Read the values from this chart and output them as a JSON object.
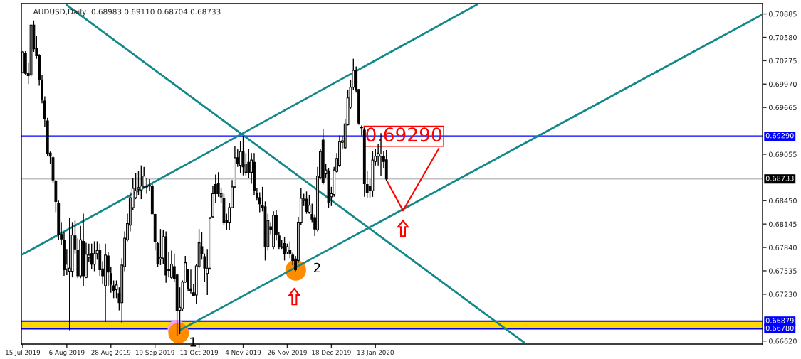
{
  "chart_data": {
    "type": "candlestick",
    "title": "AUDUSD,Daily  0.68983 0.69110 0.68704 0.68733",
    "categories": [
      "15 Jul 2019",
      null,
      null,
      null,
      null,
      null,
      null,
      null,
      null,
      null,
      null,
      null,
      null,
      null,
      null,
      null,
      "6 Aug 2019",
      null,
      null,
      null,
      null,
      null,
      null,
      null,
      null,
      null,
      null,
      null,
      null,
      null,
      null,
      null,
      "28 Aug 2019",
      null,
      null,
      null,
      null,
      null,
      null,
      null,
      null,
      null,
      null,
      null,
      null,
      null,
      null,
      null,
      "19 Sep 2019",
      null,
      null,
      null,
      null,
      null,
      null,
      null,
      null,
      null,
      null,
      null,
      null,
      null,
      null,
      null,
      "11 Oct 2019",
      null,
      null,
      null,
      null,
      null,
      null,
      null,
      null,
      null,
      null,
      null,
      null,
      null,
      null,
      null,
      "4 Nov 2019",
      null,
      null,
      null,
      null,
      null,
      null,
      null,
      null,
      null,
      null,
      null,
      null,
      null,
      null,
      null,
      "26 Nov 2019",
      null,
      null,
      null,
      null,
      null,
      null,
      null,
      null,
      null,
      null,
      null,
      null,
      null,
      null,
      null,
      "18 Dec 2019",
      null,
      null,
      null,
      null,
      null,
      null,
      null,
      null,
      null,
      null,
      null,
      null,
      null,
      null,
      null,
      "13 Jan 2020",
      null,
      null,
      null,
      null,
      null,
      null,
      null,
      null,
      null,
      null,
      null,
      null,
      null,
      null,
      null,
      null,
      null,
      null,
      null,
      null,
      null,
      null,
      null,
      null,
      null,
      null,
      null,
      null,
      null,
      null,
      null,
      null,
      null,
      null,
      null,
      null,
      null,
      null,
      null,
      null,
      null,
      null,
      null,
      null,
      null,
      null,
      null,
      null,
      null,
      null,
      null,
      null,
      null,
      null,
      null,
      null,
      null,
      null,
      null,
      null,
      null,
      null,
      null,
      null,
      null,
      null,
      null,
      null,
      null,
      null,
      null,
      null,
      null,
      null,
      null,
      null,
      null,
      null,
      null,
      null,
      null,
      null,
      null,
      null,
      null,
      null,
      null,
      null,
      null,
      null,
      null,
      null,
      null,
      null,
      null,
      null,
      null,
      null,
      null,
      null,
      null,
      null,
      null,
      null,
      null,
      null,
      null,
      null,
      null,
      null,
      null,
      null,
      null,
      null,
      null,
      null,
      null,
      null,
      null,
      null,
      null,
      null,
      null,
      null,
      null,
      null,
      null,
      null,
      null,
      null,
      null,
      null,
      null,
      null,
      null,
      null,
      null,
      null,
      null,
      null
    ],
    "ohlc": [
      [
        0.7012,
        0.704,
        0.7011,
        0.7039
      ],
      [
        0.7037,
        0.704,
        0.7009,
        0.7011
      ],
      [
        0.7011,
        0.7025,
        0.6997,
        0.7008
      ],
      [
        0.7009,
        0.7074,
        0.7007,
        0.7074
      ],
      [
        0.7074,
        0.708,
        0.7039,
        0.7043
      ],
      [
        0.7043,
        0.706,
        0.703,
        0.7034
      ],
      [
        0.7034,
        0.7036,
        0.6995,
        0.7003
      ],
      [
        0.7002,
        0.7009,
        0.6972,
        0.6977
      ],
      [
        0.6975,
        0.6981,
        0.6941,
        0.6952
      ],
      [
        0.6949,
        0.6953,
        0.6903,
        0.6907
      ],
      [
        0.6907,
        0.6909,
        0.6893,
        0.6903
      ],
      [
        0.6901,
        0.6903,
        0.6868,
        0.6872
      ],
      [
        0.687,
        0.6872,
        0.683,
        0.6844
      ],
      [
        0.6842,
        0.6845,
        0.6794,
        0.6801
      ],
      [
        0.6801,
        0.6817,
        0.6787,
        0.6795
      ],
      [
        0.6793,
        0.6804,
        0.6747,
        0.6755
      ],
      [
        0.6756,
        0.6782,
        0.6748,
        0.6762
      ],
      [
        0.6753,
        0.6822,
        0.6676,
        0.6757
      ],
      [
        0.6753,
        0.6817,
        0.6745,
        0.68
      ],
      [
        0.6799,
        0.6819,
        0.6776,
        0.6782
      ],
      [
        0.678,
        0.6796,
        0.6744,
        0.6747
      ],
      [
        0.6747,
        0.6812,
        0.6744,
        0.6794
      ],
      [
        0.6792,
        0.6828,
        0.6733,
        0.6747
      ],
      [
        0.6745,
        0.679,
        0.6744,
        0.6775
      ],
      [
        0.6771,
        0.6789,
        0.6765,
        0.6774
      ],
      [
        0.6776,
        0.6789,
        0.6756,
        0.6762
      ],
      [
        0.6762,
        0.6792,
        0.6753,
        0.6776
      ],
      [
        0.6776,
        0.6792,
        0.6768,
        0.678
      ],
      [
        0.678,
        0.6789,
        0.6747,
        0.6755
      ],
      [
        0.6756,
        0.6766,
        0.6736,
        0.6747
      ],
      [
        0.6734,
        0.6789,
        0.6687,
        0.6774
      ],
      [
        0.6773,
        0.6778,
        0.6733,
        0.6752
      ],
      [
        0.675,
        0.6759,
        0.6725,
        0.6736
      ],
      [
        0.6734,
        0.6741,
        0.6718,
        0.6727
      ],
      [
        0.6729,
        0.6741,
        0.6718,
        0.6735
      ],
      [
        0.6724,
        0.6732,
        0.6702,
        0.6712
      ],
      [
        0.6712,
        0.677,
        0.6685,
        0.6761
      ],
      [
        0.6759,
        0.6805,
        0.6753,
        0.6796
      ],
      [
        0.6794,
        0.6828,
        0.6792,
        0.6815
      ],
      [
        0.6813,
        0.6856,
        0.6805,
        0.6849
      ],
      [
        0.6836,
        0.6875,
        0.6833,
        0.6861
      ],
      [
        0.6849,
        0.6881,
        0.6847,
        0.6858
      ],
      [
        0.686,
        0.6884,
        0.6852,
        0.6862
      ],
      [
        0.6859,
        0.6891,
        0.6847,
        0.6864
      ],
      [
        0.6863,
        0.6889,
        0.6861,
        0.6877
      ],
      [
        0.6863,
        0.6875,
        0.6854,
        0.6864
      ],
      [
        0.6864,
        0.6873,
        0.6858,
        0.6865
      ],
      [
        0.6864,
        0.6867,
        0.6828,
        0.6828
      ],
      [
        0.6827,
        0.6828,
        0.678,
        0.6792
      ],
      [
        0.6789,
        0.6791,
        0.6759,
        0.6763
      ],
      [
        0.6769,
        0.6808,
        0.6761,
        0.6771
      ],
      [
        0.677,
        0.6807,
        0.6762,
        0.6798
      ],
      [
        0.6798,
        0.6805,
        0.6738,
        0.6748
      ],
      [
        0.6754,
        0.6778,
        0.6745,
        0.6755
      ],
      [
        0.6745,
        0.678,
        0.6743,
        0.6762
      ],
      [
        0.6759,
        0.6776,
        0.6739,
        0.6743
      ],
      [
        0.6748,
        0.675,
        0.6669,
        0.6702
      ],
      [
        0.6702,
        0.6732,
        0.6671,
        0.6706
      ],
      [
        0.6704,
        0.6741,
        0.6701,
        0.6739
      ],
      [
        0.6739,
        0.6773,
        0.6738,
        0.6764
      ],
      [
        0.6755,
        0.6756,
        0.6727,
        0.673
      ],
      [
        0.673,
        0.6755,
        0.6724,
        0.6727
      ],
      [
        0.6725,
        0.6736,
        0.672,
        0.6721
      ],
      [
        0.6722,
        0.6762,
        0.671,
        0.676
      ],
      [
        0.6759,
        0.6808,
        0.6757,
        0.679
      ],
      [
        0.6785,
        0.6804,
        0.6768,
        0.6776
      ],
      [
        0.6772,
        0.6776,
        0.6739,
        0.6757
      ],
      [
        0.675,
        0.6782,
        0.6722,
        0.6757
      ],
      [
        0.6757,
        0.6824,
        0.6755,
        0.6822
      ],
      [
        0.6824,
        0.6864,
        0.6822,
        0.6854
      ],
      [
        0.6866,
        0.6879,
        0.6842,
        0.6854
      ],
      [
        0.6867,
        0.6882,
        0.685,
        0.6854
      ],
      [
        0.685,
        0.6861,
        0.6842,
        0.6854
      ],
      [
        0.6848,
        0.6854,
        0.6813,
        0.6817
      ],
      [
        0.6819,
        0.6828,
        0.6807,
        0.6817
      ],
      [
        0.6817,
        0.6842,
        0.6807,
        0.6836
      ],
      [
        0.6836,
        0.6872,
        0.6835,
        0.6863
      ],
      [
        0.6863,
        0.6916,
        0.6861,
        0.6901
      ],
      [
        0.6901,
        0.6912,
        0.6889,
        0.6893
      ],
      [
        0.6891,
        0.6923,
        0.6881,
        0.6909
      ],
      [
        0.6909,
        0.6929,
        0.6878,
        0.6889
      ],
      [
        0.6882,
        0.6907,
        0.6878,
        0.6893
      ],
      [
        0.6895,
        0.6912,
        0.6875,
        0.6882
      ],
      [
        0.6882,
        0.6907,
        0.6867,
        0.6898
      ],
      [
        0.6895,
        0.6907,
        0.6852,
        0.6858
      ],
      [
        0.6854,
        0.6861,
        0.6845,
        0.6849
      ],
      [
        0.6849,
        0.6856,
        0.683,
        0.6841
      ],
      [
        0.6839,
        0.6863,
        0.6831,
        0.6836
      ],
      [
        0.6837,
        0.6844,
        0.6767,
        0.6785
      ],
      [
        0.6785,
        0.6828,
        0.678,
        0.6819
      ],
      [
        0.6811,
        0.6817,
        0.6801,
        0.6807
      ],
      [
        0.6785,
        0.6831,
        0.6782,
        0.6826
      ],
      [
        0.6826,
        0.6833,
        0.6793,
        0.6801
      ],
      [
        0.6799,
        0.6804,
        0.6782,
        0.6785
      ],
      [
        0.6785,
        0.6794,
        0.6782,
        0.6784
      ],
      [
        0.6789,
        0.6798,
        0.6767,
        0.6776
      ],
      [
        0.6778,
        0.6789,
        0.6775,
        0.6785
      ],
      [
        0.678,
        0.6792,
        0.677,
        0.6776
      ],
      [
        0.6774,
        0.6777,
        0.6761,
        0.6767
      ],
      [
        0.6769,
        0.6773,
        0.6753,
        0.6755
      ],
      [
        0.6767,
        0.6824,
        0.6764,
        0.6817
      ],
      [
        0.6817,
        0.6861,
        0.6813,
        0.6848
      ],
      [
        0.6845,
        0.6854,
        0.6838,
        0.6847
      ],
      [
        0.6847,
        0.6857,
        0.6828,
        0.6831
      ],
      [
        0.683,
        0.6852,
        0.6828,
        0.6839
      ],
      [
        0.6827,
        0.6841,
        0.6817,
        0.6821
      ],
      [
        0.6823,
        0.6827,
        0.6799,
        0.6808
      ],
      [
        0.6807,
        0.6889,
        0.6805,
        0.6877
      ],
      [
        0.6875,
        0.6913,
        0.6873,
        0.6909
      ],
      [
        0.6924,
        0.6938,
        0.6866,
        0.6868
      ],
      [
        0.688,
        0.6893,
        0.6875,
        0.6885
      ],
      [
        0.6884,
        0.6887,
        0.6836,
        0.6842
      ],
      [
        0.685,
        0.6863,
        0.6838,
        0.6854
      ],
      [
        0.6853,
        0.6889,
        0.685,
        0.6885
      ],
      [
        0.6883,
        0.6907,
        0.6881,
        0.69
      ],
      [
        0.6891,
        0.693,
        0.6889,
        0.6922
      ],
      [
        0.6921,
        0.6929,
        0.6912,
        0.6923
      ],
      [
        0.6914,
        0.6951,
        0.6912,
        0.6945
      ],
      [
        0.6944,
        0.6989,
        0.6943,
        0.6979
      ],
      [
        0.6967,
        0.7002,
        0.6965,
        0.6993
      ],
      [
        0.6993,
        0.703,
        0.6989,
        0.7015
      ],
      [
        0.7015,
        0.702,
        0.6986,
        0.6989
      ],
      [
        0.699,
        0.699,
        0.6944,
        0.6946
      ],
      [
        0.6941,
        0.6943,
        0.693,
        0.694
      ],
      [
        0.6937,
        0.694,
        0.685,
        0.6867
      ],
      [
        0.6866,
        0.6884,
        0.6849,
        0.6856
      ],
      [
        0.6864,
        0.6873,
        0.6849,
        0.6858
      ],
      [
        0.6858,
        0.691,
        0.685,
        0.6898
      ],
      [
        0.6896,
        0.6912,
        0.6891,
        0.6903
      ],
      [
        0.6903,
        0.6919,
        0.6891,
        0.6907
      ],
      [
        0.6903,
        0.6933,
        0.6877,
        0.6906
      ],
      [
        0.6903,
        0.691,
        0.6887,
        0.6896
      ],
      [
        0.68983,
        0.6911,
        0.68704,
        0.68733
      ],
      null,
      null,
      null,
      null,
      null,
      null,
      null,
      null,
      null,
      null,
      null,
      null,
      null,
      null,
      null,
      null,
      null,
      null,
      null,
      null,
      null,
      null,
      null,
      null,
      null,
      null,
      null,
      null,
      null,
      null,
      null,
      null,
      null,
      null,
      null,
      null,
      null,
      null,
      null,
      null,
      null,
      null,
      null,
      null,
      null,
      null,
      null,
      null,
      null,
      null,
      null,
      null,
      null,
      null,
      null,
      null,
      null,
      null,
      null,
      null,
      null,
      null,
      null,
      null,
      null,
      null,
      null,
      null,
      null,
      null,
      null,
      null,
      null,
      null,
      null,
      null,
      null,
      null,
      null,
      null,
      null,
      null,
      null,
      null,
      null,
      null,
      null,
      null,
      null,
      null,
      null,
      null,
      null,
      null,
      null,
      null,
      null,
      null,
      null,
      null,
      null,
      null,
      null,
      null,
      null,
      null,
      null,
      null,
      null,
      null,
      null,
      null,
      null,
      null,
      null,
      null,
      null,
      null,
      null,
      null,
      null,
      null,
      null,
      null,
      null,
      null,
      null,
      null,
      null,
      null,
      null,
      null,
      null,
      null,
      null,
      null
    ],
    "series": [
      {
        "type": "line",
        "color": "#13888a",
        "values": [
          null,
          null,
          null,
          null,
          null,
          null,
          null,
          null,
          null,
          null,
          null,
          null,
          null,
          null,
          null,
          null,
          0.71,
          null,
          null,
          null,
          null,
          null,
          null,
          null,
          null,
          null,
          null,
          null,
          null,
          null,
          null,
          null,
          null,
          null,
          null,
          null,
          null,
          null,
          null,
          null,
          null,
          null,
          null,
          null,
          null,
          null,
          null,
          null,
          null,
          null,
          null,
          null,
          null,
          null,
          null,
          null,
          null,
          null,
          null,
          null,
          null,
          null,
          null,
          null,
          null,
          null,
          null,
          null,
          null,
          null,
          null,
          null,
          null,
          null,
          null,
          null,
          null,
          null,
          null,
          null,
          null,
          null,
          null,
          null,
          null,
          null,
          null,
          null,
          null,
          null,
          null,
          null,
          null,
          null,
          null,
          null,
          null,
          null,
          null,
          null,
          null,
          null,
          null,
          null,
          null,
          null,
          null,
          null,
          null,
          null,
          null,
          null,
          null,
          null,
          null,
          null,
          null,
          null,
          null,
          null,
          null,
          null,
          null,
          null,
          null,
          null,
          null,
          null,
          null,
          null,
          null,
          null,
          null,
          null,
          null,
          null,
          null,
          null,
          null,
          null,
          null,
          null,
          null,
          null,
          null,
          null,
          null,
          null,
          null,
          null,
          null,
          null,
          null,
          null,
          null,
          null,
          null,
          null,
          null,
          null,
          null,
          null,
          null,
          null,
          null,
          null,
          null,
          null,
          null,
          null,
          null,
          null,
          null,
          null,
          null,
          null,
          null,
          null,
          null,
          null,
          null,
          null,
          0.666,
          null,
          null,
          null,
          null,
          null,
          null,
          null,
          null,
          null,
          null,
          null,
          null,
          null,
          null,
          null,
          null,
          null,
          null,
          null,
          null,
          null,
          null,
          null,
          null,
          null,
          null,
          null,
          null,
          null,
          null,
          null,
          null,
          null,
          null,
          null,
          null,
          null,
          null,
          null,
          null,
          null,
          null,
          null,
          null,
          null,
          null,
          null,
          null,
          null,
          null,
          null,
          null,
          null,
          null,
          null,
          null,
          null,
          null,
          null,
          null,
          null,
          null,
          null,
          null,
          null,
          null,
          null,
          null,
          null,
          null,
          null,
          null,
          null,
          null,
          null,
          null,
          null,
          null,
          null,
          null,
          null,
          null,
          null,
          null,
          null,
          null
        ]
      },
      {
        "type": "line",
        "color": "#13888a",
        "values": [
          0.6775,
          null,
          null,
          null,
          null,
          null,
          null,
          null,
          null,
          null,
          null,
          null,
          null,
          null,
          null,
          null,
          null,
          null,
          null,
          null,
          null,
          null,
          null,
          null,
          null,
          null,
          null,
          null,
          null,
          null,
          null,
          null,
          null,
          null,
          null,
          null,
          null,
          null,
          null,
          null,
          null,
          null,
          null,
          null,
          null,
          null,
          null,
          null,
          null,
          null,
          null,
          null,
          null,
          null,
          null,
          null,
          null,
          null,
          null,
          null,
          null,
          null,
          null,
          null,
          null,
          null,
          null,
          null,
          null,
          null,
          null,
          null,
          null,
          null,
          null,
          null,
          null,
          null,
          null,
          null,
          null,
          null,
          null,
          null,
          null,
          null,
          null,
          null,
          null,
          null,
          null,
          null,
          null,
          null,
          null,
          null,
          null,
          null,
          null,
          null,
          null,
          null,
          null,
          null,
          null,
          null,
          null,
          null,
          null,
          null,
          null,
          null,
          null,
          null,
          null,
          null,
          null,
          null,
          null,
          null,
          null,
          null,
          null,
          null,
          null,
          null,
          null,
          null,
          null,
          null,
          null,
          null,
          null,
          null,
          null,
          null,
          null,
          null,
          null,
          null,
          null,
          null,
          null,
          null,
          null,
          null,
          null,
          null,
          null,
          null,
          null,
          null,
          null,
          null,
          null,
          null,
          null,
          null,
          null,
          null,
          null,
          null,
          null,
          null,
          null,
          0.7101,
          null,
          null,
          null,
          null,
          null,
          null,
          null,
          null,
          null,
          null,
          null,
          null,
          null,
          null,
          null,
          null,
          null,
          null,
          null,
          null,
          null,
          null,
          null,
          null,
          null,
          null,
          null,
          null,
          null,
          null,
          null,
          null,
          null,
          null,
          null,
          null,
          null,
          null,
          null,
          null,
          null,
          null,
          null,
          null,
          null,
          null,
          null,
          null,
          null,
          null,
          null,
          null,
          null,
          null,
          null,
          null,
          null,
          null,
          null,
          null,
          null,
          null,
          null,
          null,
          null,
          null,
          null,
          null,
          null,
          null,
          null,
          null,
          null,
          null,
          null,
          null,
          null,
          null,
          null,
          null,
          null,
          null,
          null,
          null,
          null,
          null,
          null,
          null,
          null,
          null,
          null,
          null,
          null,
          null,
          null,
          null,
          null,
          null,
          null,
          null,
          null,
          null,
          null
        ]
      },
      {
        "type": "line",
        "color": "#13888a",
        "values": [
          null,
          null,
          null,
          null,
          null,
          null,
          null,
          null,
          null,
          null,
          null,
          null,
          null,
          null,
          null,
          null,
          null,
          null,
          null,
          null,
          null,
          null,
          null,
          null,
          null,
          null,
          null,
          null,
          null,
          null,
          null,
          null,
          null,
          null,
          null,
          null,
          null,
          null,
          null,
          null,
          null,
          null,
          null,
          null,
          null,
          null,
          null,
          null,
          null,
          null,
          null,
          null,
          null,
          null,
          null,
          null,
          null,
          0.6676,
          null,
          null,
          null,
          null,
          null,
          null,
          null,
          null,
          null,
          null,
          null,
          null,
          null,
          null,
          null,
          null,
          null,
          null,
          null,
          null,
          null,
          null,
          null,
          null,
          null,
          null,
          null,
          null,
          null,
          null,
          null,
          null,
          null,
          null,
          null,
          null,
          null,
          null,
          null,
          null,
          null,
          null,
          null,
          null,
          null,
          null,
          null,
          null,
          null,
          null,
          null,
          null,
          null,
          null,
          null,
          null,
          null,
          null,
          null,
          null,
          null,
          null,
          null,
          null,
          null,
          null,
          null,
          null,
          null,
          null,
          null,
          null,
          null,
          null,
          null,
          null,
          null,
          null,
          null,
          null,
          null,
          null,
          null,
          null,
          null,
          null,
          null,
          null,
          null,
          null,
          null,
          null,
          null,
          null,
          null,
          null,
          null,
          null,
          null,
          null,
          null,
          null,
          null,
          null,
          null,
          null,
          null,
          null,
          null,
          null,
          null,
          null,
          null,
          null,
          null,
          null,
          null,
          null,
          null,
          null,
          null,
          null,
          null,
          null,
          null,
          null,
          null,
          null,
          null,
          null,
          null,
          null,
          null,
          null,
          null,
          null,
          null,
          null,
          null,
          null,
          null,
          null,
          null,
          null,
          null,
          null,
          null,
          null,
          null,
          null,
          null,
          null,
          null,
          null,
          null,
          null,
          null,
          null,
          null,
          null,
          null,
          null,
          null,
          null,
          null,
          null,
          null,
          null,
          null,
          null,
          null,
          null,
          null,
          null,
          null,
          null,
          null,
          null,
          null,
          null,
          null,
          null,
          null,
          null,
          null,
          null,
          null,
          null,
          null,
          null,
          null,
          null,
          null,
          null,
          null,
          null,
          null,
          null,
          null,
          null,
          null,
          null,
          null,
          null,
          null,
          null,
          null,
          null,
          null,
          null,
          0.7087
        ]
      },
      {
        "type": "line",
        "color": "#ff0000",
        "values": [
          null,
          null,
          null,
          null,
          null,
          null,
          null,
          null,
          null,
          null,
          null,
          null,
          null,
          null,
          null,
          null,
          null,
          null,
          null,
          null,
          null,
          null,
          null,
          null,
          null,
          null,
          null,
          null,
          null,
          null,
          null,
          null,
          null,
          null,
          null,
          null,
          null,
          null,
          null,
          null,
          null,
          null,
          null,
          null,
          null,
          null,
          null,
          null,
          null,
          null,
          null,
          null,
          null,
          null,
          null,
          null,
          null,
          null,
          null,
          null,
          null,
          null,
          null,
          null,
          null,
          null,
          null,
          null,
          null,
          null,
          null,
          null,
          null,
          null,
          null,
          null,
          null,
          null,
          null,
          null,
          null,
          null,
          null,
          null,
          null,
          null,
          null,
          null,
          null,
          null,
          null,
          null,
          null,
          null,
          null,
          null,
          null,
          null,
          null,
          null,
          null,
          null,
          null,
          null,
          null,
          null,
          null,
          null,
          null,
          null,
          null,
          null,
          null,
          null,
          null,
          null,
          null,
          null,
          null,
          null,
          null,
          null,
          null,
          null,
          null,
          null,
          null,
          null,
          null,
          null,
          null,
          null,
          0.6872,
          null,
          null,
          null,
          null,
          null,
          0.6832,
          null,
          null,
          null,
          null,
          null,
          null,
          null,
          null,
          null,
          null,
          null,
          null,
          0.6913,
          null,
          null,
          null,
          null,
          null,
          null,
          null,
          null,
          null,
          null,
          null,
          null,
          null,
          null,
          null,
          null,
          null,
          null,
          null,
          null,
          null,
          null,
          null,
          null,
          null,
          null,
          null,
          null,
          null,
          null,
          null,
          null,
          null,
          null,
          null,
          null,
          null,
          null,
          null,
          null,
          null,
          null,
          null,
          null,
          null,
          null,
          null,
          null,
          null,
          null,
          null,
          null,
          null,
          null,
          null,
          null,
          null,
          null,
          null,
          null,
          null,
          null,
          null,
          null,
          null,
          null,
          null,
          null,
          null,
          null,
          null,
          null,
          null,
          null,
          null,
          null,
          null,
          null,
          null,
          null,
          null,
          null,
          null,
          null,
          null,
          null,
          null,
          null,
          null,
          null,
          null,
          null,
          null,
          null,
          null,
          null,
          null,
          null,
          null,
          null,
          null,
          null,
          null,
          null,
          null,
          null,
          null,
          null,
          null,
          null,
          null,
          null,
          null,
          null,
          null,
          null,
          null
        ]
      }
    ],
    "ref_lines": [
      {
        "axis": "y",
        "value": 0.6929,
        "label": "0.69290",
        "color": "#0000ff"
      },
      {
        "axis": "y",
        "value": 0.66879,
        "label": "0.66879",
        "color": "#0000ff"
      },
      {
        "axis": "y",
        "value": 0.6678,
        "label": "0.66780",
        "color": "#0000ff"
      },
      {
        "axis": "y",
        "value": 0.68733,
        "label": "0.68733",
        "color": "#c0c0c0"
      }
    ],
    "bands": [
      {
        "axis": "y",
        "from": 0.6678,
        "to": 0.66879,
        "color": "#ffd700"
      }
    ],
    "annotations": [
      {
        "text": "0.69290",
        "y": 0.6929
      },
      "1",
      "2"
    ],
    "ylim": [
      0.6658,
      0.7102
    ],
    "yticks": [
      0.70885,
      {
        "value": 0.7058,
        "label": "0.70580"
      },
      0.70275,
      {
        "value": 0.6997,
        "label": "0.69970"
      },
      0.69665,
      0.69055,
      {
        "value": 0.6845,
        "label": "0.68450"
      },
      0.68145,
      {
        "value": 0.6784,
        "label": "0.67840"
      },
      0.67535,
      {
        "value": 0.6723,
        "label": "0.67230"
      },
      {
        "value": 0.6662,
        "label": "0.66620"
      }
    ],
    "grid": false,
    "legend": false
  }
}
